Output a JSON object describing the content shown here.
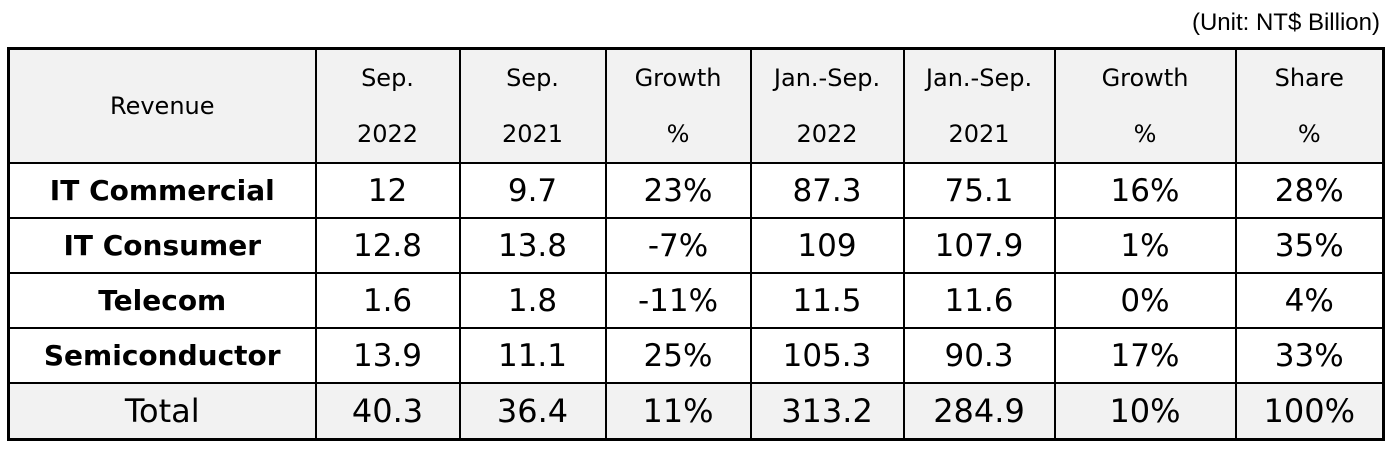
{
  "unit_label": "(Unit: NT$ Billion)",
  "chart_data": {
    "type": "table",
    "columns": [
      {
        "line1": "Revenue",
        "line2": ""
      },
      {
        "line1": "Sep.",
        "line2": "2022"
      },
      {
        "line1": "Sep.",
        "line2": "2021"
      },
      {
        "line1": "Growth",
        "line2": "%"
      },
      {
        "line1": "Jan.-Sep.",
        "line2": "2022"
      },
      {
        "line1": "Jan.-Sep.",
        "line2": "2021"
      },
      {
        "line1": "Growth",
        "line2": "%"
      },
      {
        "line1": "Share",
        "line2": "%"
      }
    ],
    "rows": [
      [
        "IT Commercial",
        "12",
        "9.7",
        "23%",
        "87.3",
        "75.1",
        "16%",
        "28%"
      ],
      [
        "IT Consumer",
        "12.8",
        "13.8",
        "-7%",
        "109",
        "107.9",
        "1%",
        "35%"
      ],
      [
        "Telecom",
        "1.6",
        "1.8",
        "-11%",
        "11.5",
        "11.6",
        "0%",
        "4%"
      ],
      [
        "Semiconductor",
        "13.9",
        "11.1",
        "25%",
        "105.3",
        "90.3",
        "17%",
        "33%"
      ]
    ],
    "total": [
      "Total",
      "40.3",
      "36.4",
      "11%",
      "313.2",
      "284.9",
      "10%",
      "100%"
    ]
  }
}
